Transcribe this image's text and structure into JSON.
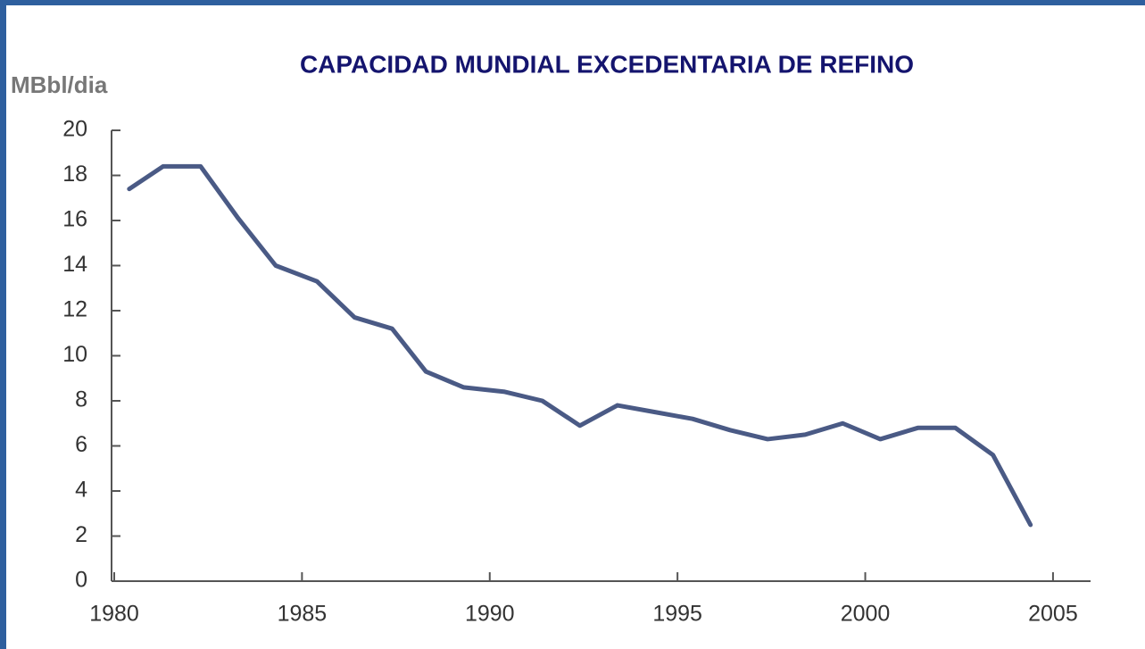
{
  "chart_data": {
    "type": "line",
    "title": "CAPACIDAD MUNDIAL EXCEDENTARIA DE REFINO",
    "y_label": "MBbl/dia",
    "x": [
      1980.4,
      1981.3,
      1982.3,
      1983.3,
      1984.3,
      1985.4,
      1986.4,
      1987.4,
      1988.3,
      1989.3,
      1990.4,
      1991.4,
      1992.4,
      1993.4,
      1994.4,
      1995.4,
      1996.4,
      1997.4,
      1998.4,
      1999.4,
      2000.4,
      2001.4,
      2002.4,
      2003.4,
      2004.4
    ],
    "values": [
      17.4,
      18.4,
      18.4,
      16.1,
      14.0,
      13.3,
      11.7,
      11.2,
      9.3,
      8.6,
      8.4,
      8.0,
      6.9,
      7.8,
      7.5,
      7.2,
      6.7,
      6.3,
      6.5,
      7.0,
      6.3,
      6.8,
      6.8,
      5.6,
      2.5
    ],
    "color": "#4a5a85",
    "xlim": [
      1980,
      2006
    ],
    "xticks": [
      1980,
      1985,
      1990,
      1995,
      2000,
      2005
    ],
    "ylim": [
      0,
      20
    ],
    "yticks": [
      0,
      2,
      4,
      6,
      8,
      10,
      12,
      14,
      16,
      18,
      20
    ],
    "grid": false
  }
}
